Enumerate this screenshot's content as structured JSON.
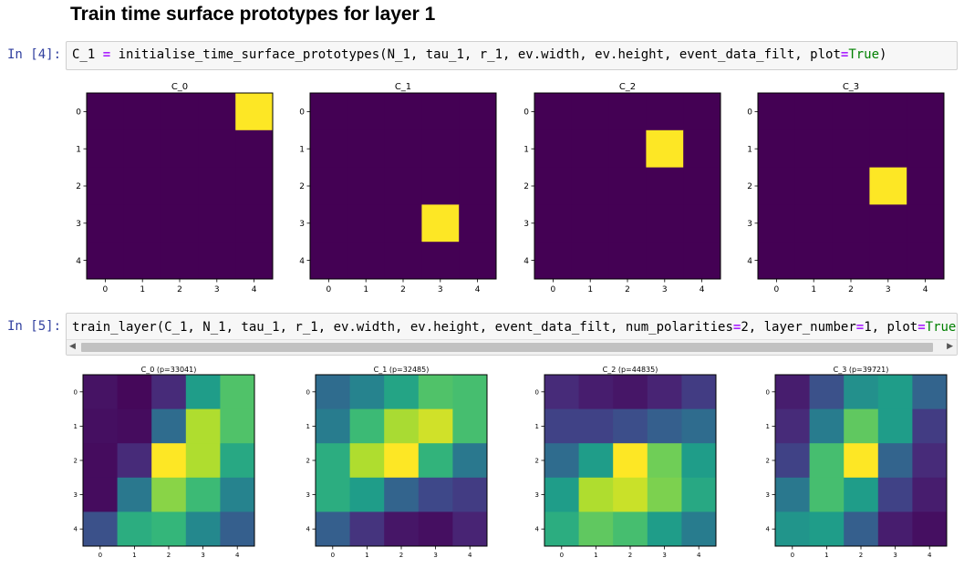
{
  "notebook": {
    "heading": "Train time surface prototypes for layer 1",
    "cells": [
      {
        "prompt": "In [4]:",
        "code_tokens": [
          {
            "t": "C_1 ",
            "c": ""
          },
          {
            "t": "=",
            "c": "eq"
          },
          {
            "t": " initialise_time_surface_prototypes(N_1, tau_1, r_1, ev.width, ev.height, event_data_filt, plot",
            "c": ""
          },
          {
            "t": "=",
            "c": "eq"
          },
          {
            "t": "True",
            "c": "kw"
          },
          {
            "t": ")",
            "c": ""
          }
        ]
      },
      {
        "prompt": "In [5]:",
        "code_tokens": [
          {
            "t": "train_layer(C_1, N_1, tau_1, r_1, ev.width, ev.height, event_data_filt, num_polarities",
            "c": ""
          },
          {
            "t": "=",
            "c": "eq"
          },
          {
            "t": "2, layer_number",
            "c": ""
          },
          {
            "t": "=",
            "c": "eq"
          },
          {
            "t": "1, plot",
            "c": ""
          },
          {
            "t": "=",
            "c": "eq"
          },
          {
            "t": "True",
            "c": "kw"
          }
        ]
      }
    ]
  },
  "scrollbar": {
    "left_arrow": "◀",
    "right_arrow": "▶"
  },
  "chart_data": [
    {
      "type": "heatmap",
      "colormap": "viridis",
      "x_ticks": [
        "0",
        "1",
        "2",
        "3",
        "4"
      ],
      "y_ticks": [
        "0",
        "1",
        "2",
        "3",
        "4"
      ],
      "plots": [
        {
          "title": "C_0",
          "values": [
            [
              0,
              0,
              0,
              0,
              1
            ],
            [
              0,
              0,
              0,
              0,
              0
            ],
            [
              0,
              0,
              0,
              0,
              0
            ],
            [
              0,
              0,
              0,
              0,
              0
            ],
            [
              0,
              0,
              0,
              0,
              0
            ]
          ]
        },
        {
          "title": "C_1",
          "values": [
            [
              0,
              0,
              0,
              0,
              0
            ],
            [
              0,
              0,
              0,
              0,
              0
            ],
            [
              0,
              0,
              0,
              0,
              0
            ],
            [
              0,
              0,
              0,
              1,
              0
            ],
            [
              0,
              0,
              0,
              0,
              0
            ]
          ]
        },
        {
          "title": "C_2",
          "values": [
            [
              0,
              0,
              0,
              0,
              0
            ],
            [
              0,
              0,
              0,
              1,
              0
            ],
            [
              0,
              0,
              0,
              0,
              0
            ],
            [
              0,
              0,
              0,
              0,
              0
            ],
            [
              0,
              0,
              0,
              0,
              0
            ]
          ]
        },
        {
          "title": "C_3",
          "values": [
            [
              0,
              0,
              0,
              0,
              0
            ],
            [
              0,
              0,
              0,
              0,
              0
            ],
            [
              0,
              0,
              0,
              1,
              0
            ],
            [
              0,
              0,
              0,
              0,
              0
            ],
            [
              0,
              0,
              0,
              0,
              0
            ]
          ]
        }
      ]
    },
    {
      "type": "heatmap",
      "colormap": "viridis",
      "x_ticks": [
        "0",
        "1",
        "2",
        "3",
        "4"
      ],
      "y_ticks": [
        "0",
        "1",
        "2",
        "3",
        "4"
      ],
      "plots": [
        {
          "title": "C_0 (p=33041)",
          "values": [
            [
              0.05,
              0.02,
              0.12,
              0.55,
              0.72
            ],
            [
              0.04,
              0.03,
              0.35,
              0.88,
              0.72
            ],
            [
              0.03,
              0.12,
              1.0,
              0.88,
              0.6
            ],
            [
              0.03,
              0.4,
              0.82,
              0.68,
              0.45
            ],
            [
              0.25,
              0.62,
              0.66,
              0.47,
              0.3
            ]
          ]
        },
        {
          "title": "C_1 (p=32485)",
          "values": [
            [
              0.35,
              0.45,
              0.58,
              0.72,
              0.7
            ],
            [
              0.42,
              0.68,
              0.87,
              0.93,
              0.7
            ],
            [
              0.62,
              0.88,
              1.0,
              0.65,
              0.4
            ],
            [
              0.62,
              0.55,
              0.32,
              0.22,
              0.18
            ],
            [
              0.3,
              0.15,
              0.06,
              0.04,
              0.1
            ]
          ]
        },
        {
          "title": "C_2 (p=44835)",
          "values": [
            [
              0.12,
              0.08,
              0.06,
              0.1,
              0.18
            ],
            [
              0.2,
              0.2,
              0.24,
              0.3,
              0.35
            ],
            [
              0.35,
              0.55,
              1.0,
              0.78,
              0.55
            ],
            [
              0.55,
              0.88,
              0.92,
              0.8,
              0.6
            ],
            [
              0.62,
              0.75,
              0.7,
              0.55,
              0.42
            ]
          ]
        },
        {
          "title": "C_3 (p=39721)",
          "values": [
            [
              0.08,
              0.25,
              0.5,
              0.55,
              0.32
            ],
            [
              0.12,
              0.42,
              0.75,
              0.55,
              0.18
            ],
            [
              0.2,
              0.7,
              1.0,
              0.32,
              0.12
            ],
            [
              0.4,
              0.7,
              0.55,
              0.2,
              0.08
            ],
            [
              0.52,
              0.55,
              0.3,
              0.08,
              0.04
            ]
          ]
        }
      ]
    }
  ]
}
